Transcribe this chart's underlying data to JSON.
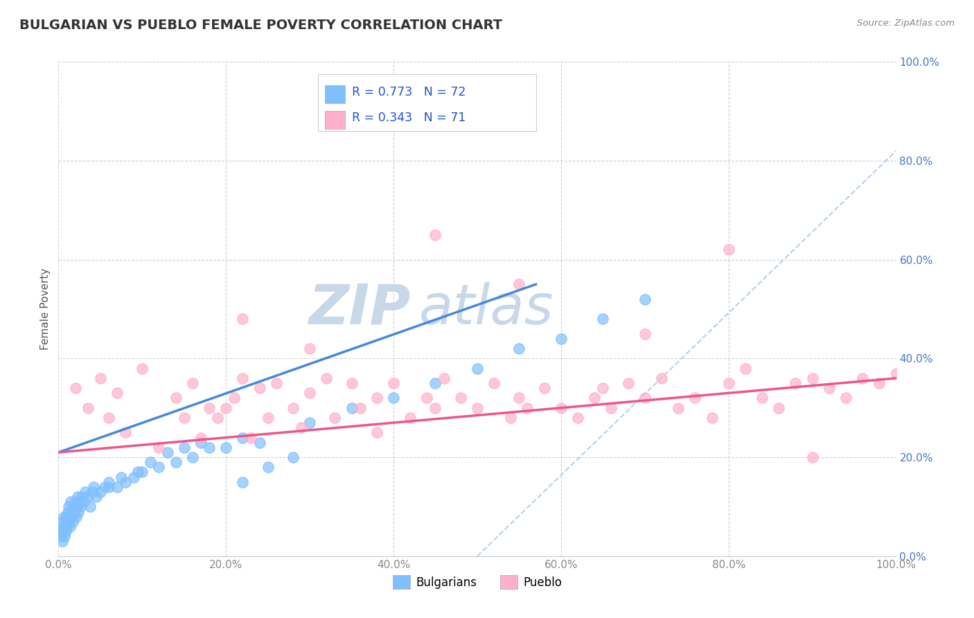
{
  "title": "BULGARIAN VS PUEBLO FEMALE POVERTY CORRELATION CHART",
  "source": "Source: ZipAtlas.com",
  "ylabel": "Female Poverty",
  "x_tick_labels": [
    "0.0%",
    "20.0%",
    "40.0%",
    "60.0%",
    "80.0%",
    "100.0%"
  ],
  "y_tick_labels": [
    "0.0%",
    "20.0%",
    "40.0%",
    "60.0%",
    "80.0%",
    "100.0%"
  ],
  "xlim": [
    0,
    100
  ],
  "ylim": [
    0,
    100
  ],
  "legend_r1": "0.773",
  "legend_n1": "72",
  "legend_r2": "0.343",
  "legend_n2": "71",
  "legend_label1": "Bulgarians",
  "legend_label2": "Pueblo",
  "background_color": "#ffffff",
  "plot_bg_color": "#ffffff",
  "title_color": "#333333",
  "title_fontsize": 14,
  "axis_label_color": "#555555",
  "tick_color": "#888888",
  "y_tick_color": "#4477CC",
  "grid_color": "#cccccc",
  "watermark_zip": "ZIP",
  "watermark_atlas": "atlas",
  "watermark_color": "#c8d8e8",
  "blue_scatter_color": "#80BFFF",
  "pink_scatter_color": "#FFB0C8",
  "blue_line_color": "#4488DD",
  "pink_line_color": "#EE5588",
  "ref_line_color": "#aaccee",
  "legend_r_color": "#2255CC",
  "legend_n_color": "#2255CC",
  "bulgarians_x": [
    0.2,
    0.3,
    0.4,
    0.5,
    0.5,
    0.6,
    0.6,
    0.7,
    0.7,
    0.8,
    0.9,
    1.0,
    1.0,
    1.1,
    1.2,
    1.2,
    1.3,
    1.4,
    1.5,
    1.5,
    1.6,
    1.7,
    1.8,
    1.9,
    2.0,
    2.1,
    2.2,
    2.3,
    2.4,
    2.5,
    2.6,
    2.8,
    3.0,
    3.2,
    3.5,
    3.8,
    4.0,
    4.2,
    4.5,
    5.0,
    5.5,
    6.0,
    7.0,
    8.0,
    9.0,
    10.0,
    12.0,
    14.0,
    16.0,
    18.0,
    20.0,
    22.0,
    24.0,
    30.0,
    35.0,
    40.0,
    45.0,
    50.0,
    55.0,
    60.0,
    65.0,
    70.0,
    22.0,
    25.0,
    28.0,
    6.0,
    7.5,
    9.5,
    11.0,
    13.0,
    15.0,
    17.0
  ],
  "bulgarians_y": [
    5,
    4,
    6,
    3,
    7,
    5,
    8,
    4,
    6,
    7,
    5,
    8,
    6,
    9,
    7,
    10,
    8,
    6,
    9,
    11,
    8,
    7,
    10,
    9,
    11,
    8,
    10,
    12,
    9,
    11,
    10,
    12,
    11,
    13,
    12,
    10,
    13,
    14,
    12,
    13,
    14,
    15,
    14,
    15,
    16,
    17,
    18,
    19,
    20,
    22,
    22,
    24,
    23,
    27,
    30,
    32,
    35,
    38,
    42,
    44,
    48,
    52,
    15,
    18,
    20,
    14,
    16,
    17,
    19,
    21,
    22,
    23
  ],
  "pueblo_x": [
    2.0,
    3.5,
    5.0,
    6.0,
    7.0,
    8.0,
    10.0,
    12.0,
    14.0,
    15.0,
    16.0,
    17.0,
    18.0,
    19.0,
    20.0,
    21.0,
    22.0,
    23.0,
    24.0,
    25.0,
    26.0,
    28.0,
    29.0,
    30.0,
    32.0,
    33.0,
    35.0,
    36.0,
    38.0,
    40.0,
    42.0,
    44.0,
    45.0,
    46.0,
    48.0,
    50.0,
    52.0,
    54.0,
    55.0,
    56.0,
    58.0,
    60.0,
    62.0,
    64.0,
    65.0,
    66.0,
    68.0,
    70.0,
    72.0,
    74.0,
    76.0,
    78.0,
    80.0,
    82.0,
    84.0,
    86.0,
    88.0,
    90.0,
    92.0,
    94.0,
    96.0,
    98.0,
    100.0,
    45.0,
    22.0,
    30.0,
    55.0,
    70.0,
    80.0,
    90.0,
    38.0
  ],
  "pueblo_y": [
    34,
    30,
    36,
    28,
    33,
    25,
    38,
    22,
    32,
    28,
    35,
    24,
    30,
    28,
    30,
    32,
    36,
    24,
    34,
    28,
    35,
    30,
    26,
    33,
    36,
    28,
    35,
    30,
    32,
    35,
    28,
    32,
    30,
    36,
    32,
    30,
    35,
    28,
    32,
    30,
    34,
    30,
    28,
    32,
    34,
    30,
    35,
    32,
    36,
    30,
    32,
    28,
    35,
    38,
    32,
    30,
    35,
    36,
    34,
    32,
    36,
    35,
    37,
    65,
    48,
    42,
    55,
    45,
    62,
    20,
    25
  ],
  "blue_trendline_x": [
    0,
    57
  ],
  "blue_trendline_y": [
    21,
    55
  ],
  "pink_trendline_x": [
    0,
    100
  ],
  "pink_trendline_y": [
    21,
    36
  ],
  "ref_line_x": [
    50,
    100
  ],
  "ref_line_y": [
    0,
    82
  ]
}
